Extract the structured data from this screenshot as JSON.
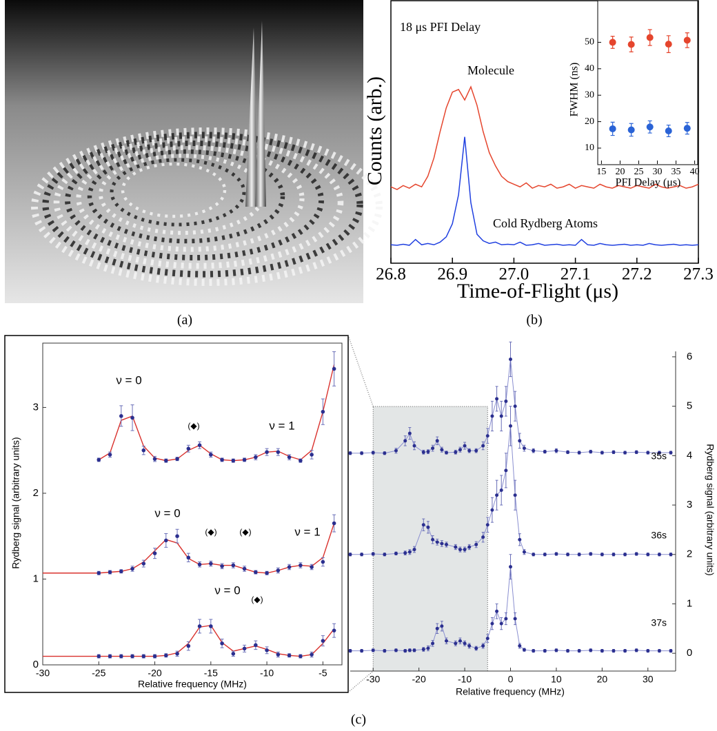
{
  "captions": {
    "a": "(a)",
    "b": "(b)",
    "c": "(c)"
  },
  "chart_data": [
    {
      "type": "line",
      "annotations": [
        "18 μs PFI Delay"
      ],
      "x_label": "Time-of-Flight (μs)",
      "y_label": "Counts (arb.)",
      "xlim": [
        26.8,
        27.3
      ],
      "xticks": [
        26.8,
        26.9,
        {
          "value": 27,
          "label": "27.0"
        },
        27.1,
        27.2,
        27.3
      ],
      "ylim": [
        0,
        10
      ],
      "x": [
        26.8,
        26.81,
        26.82,
        26.83,
        26.84,
        26.85,
        26.86,
        26.87,
        26.88,
        26.89,
        26.9,
        26.91,
        26.92,
        26.93,
        26.94,
        26.95,
        26.96,
        26.97,
        26.98,
        26.99,
        27,
        27.01,
        27.02,
        27.03,
        27.04,
        27.05,
        27.06,
        27.07,
        27.08,
        27.09,
        27.1,
        27.11,
        27.12,
        27.13,
        27.14,
        27.15,
        27.16,
        27.17,
        27.18,
        27.19,
        27.2,
        27.21,
        27.22,
        27.23,
        27.24,
        27.25,
        27.26,
        27.27,
        27.28,
        27.29,
        27.3
      ],
      "series": [
        {
          "name": "Molecule",
          "color": "#e5452d",
          "values": [
            2.9,
            2.8,
            2.95,
            2.85,
            3.0,
            2.9,
            3.3,
            4.0,
            5.0,
            5.9,
            6.5,
            6.6,
            6.2,
            6.7,
            6.0,
            5.0,
            4.2,
            3.7,
            3.3,
            3.1,
            3.0,
            2.9,
            3.05,
            2.85,
            2.95,
            2.9,
            3.0,
            2.85,
            2.9,
            3.0,
            2.85,
            2.95,
            2.9,
            2.85,
            3.0,
            2.9,
            2.85,
            2.95,
            2.9,
            2.85,
            2.95,
            2.9,
            2.85,
            3.0,
            2.9,
            2.85,
            2.9,
            2.95,
            2.85,
            2.9,
            3.0
          ]
        },
        {
          "name": "Cold Rydberg Atoms",
          "color": "#1f3fe0",
          "values": [
            0.7,
            0.68,
            0.72,
            0.68,
            0.9,
            0.7,
            0.75,
            0.7,
            0.8,
            1.0,
            1.5,
            2.6,
            4.8,
            2.3,
            1.1,
            0.85,
            0.75,
            0.8,
            0.7,
            0.72,
            0.7,
            0.8,
            0.68,
            0.7,
            0.75,
            0.68,
            0.7,
            0.72,
            0.68,
            0.7,
            0.68,
            0.9,
            0.7,
            0.68,
            0.75,
            0.7,
            0.68,
            0.7,
            0.72,
            0.68,
            0.7,
            0.68,
            0.75,
            0.7,
            0.68,
            0.7,
            0.72,
            0.68,
            0.7,
            0.68,
            0.7
          ]
        }
      ]
    },
    {
      "type": "scatter",
      "x_label": "PFI Delay (μs)",
      "y_label": "FWHM (ns)",
      "xlim": [
        14,
        41
      ],
      "xticks": [
        15,
        20,
        25,
        30,
        35,
        40
      ],
      "ylim": [
        4,
        66
      ],
      "yticks": [
        10,
        20,
        30,
        40,
        50
      ],
      "x": [
        18,
        23,
        28,
        33,
        38
      ],
      "series": [
        {
          "color": "#e5452d",
          "values": [
            50,
            49.2,
            51.8,
            49.3,
            50.8
          ],
          "errors": [
            2.3,
            2.8,
            3,
            3.2,
            2.8
          ]
        },
        {
          "color": "#2a63d6",
          "values": [
            17.3,
            16.9,
            18,
            16.5,
            17.5
          ],
          "errors": [
            2.5,
            2.4,
            2.3,
            2.2,
            2.2
          ]
        }
      ]
    },
    {
      "type": "scatter",
      "x_label": "Relative frequency (MHz)",
      "y_label": "Rydberg signal (arbitrary units)",
      "annotations": [
        "ν = 0",
        "(◆)",
        "ν = 1",
        "ν = 0",
        "(◆)",
        "(◆)",
        "ν = 1",
        "ν = 0",
        "(◆)"
      ],
      "xlim": [
        -30,
        -3.3
      ],
      "xticks": [
        -30,
        -25,
        -20,
        -15,
        -10,
        -5
      ],
      "ylim": [
        0,
        3.75
      ],
      "yticks": [
        0,
        1,
        2,
        3
      ],
      "x": [
        -25,
        -24,
        -23,
        -22,
        -21,
        -20,
        -19,
        -18,
        -17,
        -16,
        -15,
        -14,
        -13,
        -12,
        -11,
        -10,
        -9,
        -8,
        -7,
        -6,
        -5,
        -4
      ],
      "series": [
        {
          "color": "#2b2f8f",
          "values": [
            2.39,
            2.45,
            2.9,
            2.88,
            2.5,
            2.4,
            2.38,
            2.4,
            2.52,
            2.56,
            2.45,
            2.39,
            2.38,
            2.39,
            2.42,
            2.48,
            2.48,
            2.42,
            2.38,
            2.45,
            2.95,
            3.45
          ],
          "errors": [
            0.02,
            0.03,
            0.12,
            0.15,
            0.05,
            0.03,
            0.02,
            0.02,
            0.04,
            0.04,
            0.03,
            0.02,
            0.02,
            0.02,
            0.03,
            0.04,
            0.04,
            0.03,
            0.02,
            0.05,
            0.15,
            0.2
          ]
        },
        {
          "color": "#2b2f8f",
          "values": [
            1.07,
            1.08,
            1.09,
            1.12,
            1.18,
            1.3,
            1.45,
            1.5,
            1.25,
            1.17,
            1.18,
            1.15,
            1.16,
            1.12,
            1.08,
            1.07,
            1.1,
            1.14,
            1.16,
            1.14,
            1.2,
            1.65
          ],
          "errors": [
            0.02,
            0.02,
            0.02,
            0.03,
            0.04,
            0.06,
            0.08,
            0.08,
            0.05,
            0.03,
            0.03,
            0.03,
            0.03,
            0.03,
            0.02,
            0.02,
            0.03,
            0.03,
            0.03,
            0.03,
            0.05,
            0.1
          ]
        },
        {
          "color": "#2b2f8f",
          "values": [
            0.1,
            0.1,
            0.1,
            0.1,
            0.1,
            0.1,
            0.11,
            0.13,
            0.22,
            0.45,
            0.45,
            0.25,
            0.13,
            0.19,
            0.23,
            0.17,
            0.12,
            0.11,
            0.1,
            0.12,
            0.28,
            0.4
          ],
          "errors": [
            0.02,
            0.02,
            0.02,
            0.02,
            0.02,
            0.02,
            0.02,
            0.03,
            0.05,
            0.08,
            0.08,
            0.05,
            0.03,
            0.04,
            0.05,
            0.04,
            0.03,
            0.02,
            0.02,
            0.03,
            0.06,
            0.08
          ]
        }
      ],
      "fits": [
        {
          "color": "#d9302c",
          "x": [
            -30,
            -29,
            -28,
            -27,
            -26,
            -25,
            -24,
            -23,
            -22,
            -21,
            -20,
            -19,
            -18,
            -17,
            -16,
            -15,
            -14,
            -13,
            -12,
            -11,
            -10,
            -9,
            -8,
            -7,
            -6,
            -5,
            -4
          ],
          "values": [
            null,
            null,
            null,
            null,
            null,
            2.39,
            2.47,
            2.85,
            2.9,
            2.55,
            2.41,
            2.38,
            2.4,
            2.5,
            2.56,
            2.46,
            2.39,
            2.38,
            2.39,
            2.42,
            2.48,
            2.49,
            2.43,
            2.39,
            2.5,
            2.95,
            3.5
          ]
        },
        {
          "color": "#d9302c",
          "x": [
            -30,
            -29,
            -28,
            -27,
            -26,
            -25,
            -24,
            -23,
            -22,
            -21,
            -20,
            -19,
            -18,
            -17,
            -16,
            -15,
            -14,
            -13,
            -12,
            -11,
            -10,
            -9,
            -8,
            -7,
            -6,
            -5,
            -4
          ],
          "values": [
            1.07,
            1.07,
            1.07,
            1.07,
            1.07,
            1.07,
            1.08,
            1.09,
            1.12,
            1.2,
            1.33,
            1.46,
            1.42,
            1.24,
            1.17,
            1.18,
            1.16,
            1.16,
            1.12,
            1.08,
            1.07,
            1.1,
            1.14,
            1.16,
            1.15,
            1.25,
            1.65
          ]
        },
        {
          "color": "#d9302c",
          "x": [
            -30,
            -29,
            -28,
            -27,
            -26,
            -25,
            -24,
            -23,
            -22,
            -21,
            -20,
            -19,
            -18,
            -17,
            -16,
            -15,
            -14,
            -13,
            -12,
            -11,
            -10,
            -9,
            -8,
            -7,
            -6,
            -5,
            -4
          ],
          "values": [
            0.1,
            0.1,
            0.1,
            0.1,
            0.1,
            0.1,
            0.1,
            0.1,
            0.1,
            0.1,
            0.1,
            0.11,
            0.14,
            0.25,
            0.44,
            0.46,
            0.26,
            0.16,
            0.19,
            0.22,
            0.18,
            0.13,
            0.11,
            0.1,
            0.12,
            0.25,
            0.42
          ]
        }
      ]
    },
    {
      "type": "scatter",
      "x_label": "Relative frequency (MHz)",
      "y_label": "Rydberg signal (arbitrary units)",
      "xlim": [
        -35,
        35
      ],
      "xticks": [
        -30,
        -20,
        -10,
        0,
        10,
        20,
        30
      ],
      "y2lim": [
        -0.36,
        6.11
      ],
      "y2ticks": [
        0,
        1,
        2,
        3,
        4,
        5,
        6
      ],
      "highlight": [
        -30,
        -5
      ],
      "x": [
        -35,
        -32.5,
        -30,
        -27.5,
        -25,
        -23,
        -22,
        -21,
        -19,
        -18,
        -17,
        -16,
        -15,
        -14,
        -12,
        -11,
        -10,
        -9,
        -7.5,
        -6,
        -5,
        -4,
        -3,
        -2,
        -1,
        0,
        1,
        2,
        3,
        5,
        7.5,
        10,
        12.5,
        15,
        17.5,
        20,
        22.5,
        25,
        27.5,
        30,
        32.5,
        35
      ],
      "series": [
        {
          "name": "35s",
          "axis": "y2",
          "color": "#2b2f8f",
          "values": [
            4.05,
            4.05,
            4.06,
            4.05,
            4.1,
            4.3,
            4.45,
            4.2,
            4.07,
            4.08,
            4.15,
            4.3,
            4.12,
            4.06,
            4.07,
            4.12,
            4.2,
            4.1,
            4.1,
            4.2,
            4.4,
            4.8,
            5.15,
            4.8,
            5.1,
            5.95,
            5.0,
            4.3,
            4.15,
            4.1,
            4.08,
            4.1,
            4.07,
            4.06,
            4.08,
            4.06,
            4.07,
            4.06,
            4.07,
            4.06,
            4.06,
            4.06
          ],
          "errors": [
            0.03,
            0.03,
            0.03,
            0.03,
            0.05,
            0.1,
            0.12,
            0.08,
            0.04,
            0.04,
            0.06,
            0.08,
            0.05,
            0.03,
            0.04,
            0.05,
            0.07,
            0.04,
            0.04,
            0.08,
            0.15,
            0.3,
            0.25,
            0.3,
            0.3,
            0.35,
            0.3,
            0.15,
            0.06,
            0.04,
            0.03,
            0.04,
            0.03,
            0.03,
            0.03,
            0.03,
            0.03,
            0.03,
            0.03,
            0.03,
            0.03,
            0.03
          ]
        },
        {
          "name": "36s",
          "axis": "y2",
          "color": "#2b2f8f",
          "values": [
            2.0,
            2.0,
            2.01,
            2.0,
            2.02,
            2.03,
            2.05,
            2.1,
            2.6,
            2.55,
            2.3,
            2.25,
            2.22,
            2.2,
            2.15,
            2.1,
            2.1,
            2.15,
            2.2,
            2.35,
            2.6,
            2.9,
            3.2,
            3.3,
            3.7,
            4.6,
            3.2,
            2.3,
            2.05,
            2.0,
            2.0,
            2.01,
            2.0,
            2.0,
            2.01,
            2.0,
            2.0,
            2.0,
            2.01,
            2.0,
            2.0,
            2.0
          ],
          "errors": [
            0.03,
            0.03,
            0.03,
            0.03,
            0.03,
            0.04,
            0.05,
            0.06,
            0.12,
            0.12,
            0.08,
            0.06,
            0.06,
            0.05,
            0.05,
            0.05,
            0.05,
            0.05,
            0.06,
            0.1,
            0.15,
            0.25,
            0.3,
            0.3,
            0.35,
            0.4,
            0.3,
            0.12,
            0.05,
            0.03,
            0.03,
            0.03,
            0.03,
            0.03,
            0.03,
            0.03,
            0.03,
            0.03,
            0.03,
            0.03,
            0.03,
            0.03
          ]
        },
        {
          "name": "37s",
          "axis": "y2",
          "color": "#2b2f8f",
          "values": [
            0.05,
            0.05,
            0.06,
            0.05,
            0.06,
            0.05,
            0.06,
            0.06,
            0.08,
            0.1,
            0.2,
            0.5,
            0.55,
            0.25,
            0.2,
            0.25,
            0.2,
            0.15,
            0.1,
            0.15,
            0.3,
            0.6,
            0.85,
            0.6,
            0.7,
            1.75,
            0.7,
            0.15,
            0.07,
            0.05,
            0.05,
            0.06,
            0.05,
            0.05,
            0.06,
            0.05,
            0.05,
            0.05,
            0.06,
            0.05,
            0.05,
            0.05
          ],
          "errors": [
            0.03,
            0.03,
            0.03,
            0.03,
            0.03,
            0.03,
            0.03,
            0.03,
            0.04,
            0.05,
            0.06,
            0.1,
            0.1,
            0.06,
            0.05,
            0.06,
            0.05,
            0.05,
            0.04,
            0.05,
            0.08,
            0.12,
            0.15,
            0.12,
            0.12,
            0.25,
            0.12,
            0.05,
            0.03,
            0.03,
            0.03,
            0.03,
            0.03,
            0.03,
            0.03,
            0.03,
            0.03,
            0.03,
            0.03,
            0.03,
            0.03,
            0.03
          ]
        }
      ]
    }
  ]
}
